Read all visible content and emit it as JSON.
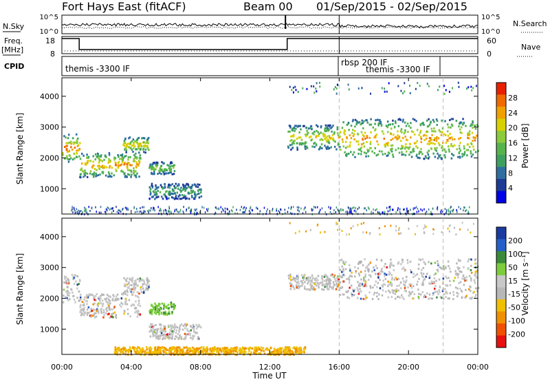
{
  "header": {
    "station": "Fort Hays East (fitACF)",
    "beam": "Beam 00",
    "date_range": "01/Sep/2015 - 02/Sep/2015"
  },
  "top_panels": {
    "nsky_label": "N.Sky",
    "nsky_ticks": [
      "10^5",
      "10^0"
    ],
    "nsearch_label": "N.Search",
    "freq_label_1": "Freq.",
    "freq_label_2": "[MHz]",
    "freq_ticks": [
      "18",
      "8"
    ],
    "nave_ticks": [
      "60",
      "0"
    ],
    "nave_label": "Nave",
    "cpid_label": "CPID",
    "cpid_segments": [
      {
        "label": "themis -3300 IF",
        "start_hour": 0
      },
      {
        "label": "rbsp 200 IF",
        "start_hour": 16
      },
      {
        "label": "themis -3300 IF",
        "start_hour": 17.5
      }
    ]
  },
  "x_axis": {
    "title": "Time UT",
    "ticks": [
      "00:00",
      "04:00",
      "08:00",
      "12:00",
      "16:00",
      "20:00",
      "00:00"
    ]
  },
  "colors": {
    "power": [
      "#0000e6",
      "#1e3c96",
      "#2e6ea0",
      "#3ea060",
      "#56b44c",
      "#8ccb3a",
      "#d8d000",
      "#f0a000",
      "#f06a00",
      "#e82000"
    ],
    "velocity": [
      "#1a3ca0",
      "#2460c8",
      "#3a8a3a",
      "#7ccc3c",
      "#c8c8c8",
      "#b8b8b8",
      "#f0c000",
      "#f09000",
      "#f05000",
      "#e81010"
    ]
  },
  "chart_data": [
    {
      "type": "heatmap",
      "title": "Power",
      "ylabel": "Slant Range [km]",
      "xlabel": "",
      "xlim": [
        0,
        24
      ],
      "ylim": [
        180,
        4600
      ],
      "yticks": [
        "1000",
        "2000",
        "3000",
        "4000"
      ],
      "colorbar_label": "Power [dB]",
      "colorbar_ticks": [
        "4",
        "8",
        "12",
        "16",
        "20",
        "24",
        "28"
      ],
      "dashed_markers_hours": [
        16,
        22
      ],
      "regions": [
        {
          "x": [
            0.0,
            1.0
          ],
          "range": [
            1900,
            2800
          ],
          "peak": 24
        },
        {
          "x": [
            1.0,
            4.5
          ],
          "range": [
            1400,
            2200
          ],
          "peak": 22
        },
        {
          "x": [
            3.5,
            5.0
          ],
          "range": [
            2200,
            2700
          ],
          "peak": 20
        },
        {
          "x": [
            5.0,
            6.5
          ],
          "range": [
            1500,
            1900
          ],
          "peak": 14
        },
        {
          "x": [
            5.0,
            8.0
          ],
          "range": [
            700,
            1200
          ],
          "peak": 10
        },
        {
          "x": [
            13.0,
            16.0
          ],
          "range": [
            2300,
            3100
          ],
          "peak": 18
        },
        {
          "x": [
            16.0,
            24.0
          ],
          "range": [
            2000,
            3300
          ],
          "peak": 22
        }
      ]
    },
    {
      "type": "heatmap",
      "title": "Velocity",
      "ylabel": "Slant Range [km]",
      "xlabel": "Time UT",
      "xlim": [
        0,
        24
      ],
      "ylim": [
        180,
        4600
      ],
      "yticks": [
        "1000",
        "2000",
        "3000",
        "4000"
      ],
      "colorbar_label": "Velocity [m s⁻¹]",
      "colorbar_ticks": [
        "200",
        "100",
        "50",
        "15",
        "-15",
        "-50",
        "-100",
        "-200"
      ],
      "dashed_markers_hours": [
        16,
        22
      ],
      "regions": [
        {
          "x": [
            0.0,
            1.0
          ],
          "range": [
            1900,
            2800
          ],
          "v": 0
        },
        {
          "x": [
            1.0,
            4.5
          ],
          "range": [
            1400,
            2200
          ],
          "v": 0
        },
        {
          "x": [
            3.5,
            5.0
          ],
          "range": [
            2200,
            2700
          ],
          "v": 0
        },
        {
          "x": [
            5.0,
            6.5
          ],
          "range": [
            1500,
            1900
          ],
          "v": 60
        },
        {
          "x": [
            5.0,
            8.0
          ],
          "range": [
            700,
            1200
          ],
          "v": 0
        },
        {
          "x": [
            13.0,
            16.0
          ],
          "range": [
            2300,
            2800
          ],
          "v": 0
        },
        {
          "x": [
            16.0,
            24.0
          ],
          "range": [
            2000,
            3300
          ],
          "v": 0
        },
        {
          "x": [
            3.0,
            14.0
          ],
          "range": [
            200,
            450
          ],
          "v": -60
        }
      ]
    }
  ]
}
